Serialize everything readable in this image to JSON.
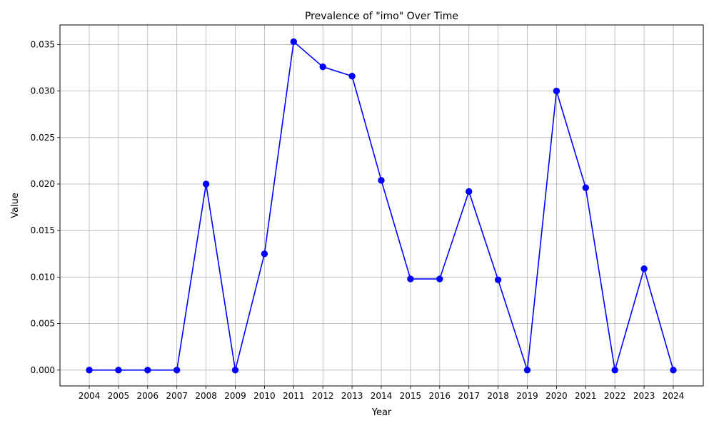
{
  "chart_data": {
    "type": "line",
    "title": "Prevalence of \"imo\" Over Time",
    "xlabel": "Year",
    "ylabel": "Value",
    "x": [
      "2004",
      "2005",
      "2006",
      "2007",
      "2008",
      "2009",
      "2010",
      "2011",
      "2012",
      "2013",
      "2014",
      "2015",
      "2016",
      "2017",
      "2018",
      "2019",
      "2020",
      "2021",
      "2022",
      "2023",
      "2024"
    ],
    "series": [
      {
        "values": [
          0.0,
          0.0,
          0.0,
          0.0,
          0.02,
          0.0,
          0.0125,
          0.0353,
          0.0326,
          0.0316,
          0.0204,
          0.0098,
          0.0098,
          0.0192,
          0.0097,
          0.0,
          0.03,
          0.0196,
          0.0,
          0.0109,
          0.0
        ],
        "color": "#0000ff",
        "marker": "circle"
      }
    ],
    "ylim": [
      -0.0017,
      0.0371
    ],
    "yticks": [
      "0.000",
      "0.005",
      "0.010",
      "0.015",
      "0.020",
      "0.025",
      "0.030",
      "0.035"
    ],
    "grid": true,
    "colors": {
      "line": "#0000ff",
      "grid": "#b0b0b0",
      "axes": "#000000"
    }
  }
}
